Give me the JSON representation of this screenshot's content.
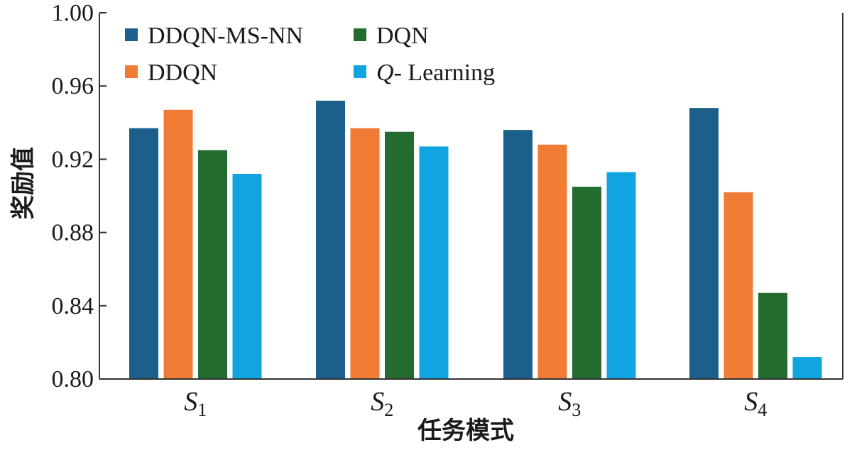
{
  "chart_data": {
    "type": "bar",
    "ylabel": "奖励值",
    "xlabel": "任务模式",
    "ylim": [
      0.8,
      1.0
    ],
    "yticks": [
      "0.80",
      "0.84",
      "0.88",
      "0.92",
      "0.96",
      "1.00"
    ],
    "categories": [
      {
        "letter": "S",
        "sub": "1"
      },
      {
        "letter": "S",
        "sub": "2"
      },
      {
        "letter": "S",
        "sub": "3"
      },
      {
        "letter": "S",
        "sub": "4"
      }
    ],
    "series": [
      {
        "name": "DDQN-MS-NN",
        "color": "#1b5f8a",
        "values": [
          0.937,
          0.952,
          0.936,
          0.948
        ]
      },
      {
        "name": "DDQN",
        "color": "#f07b35",
        "values": [
          0.947,
          0.937,
          0.928,
          0.902
        ]
      },
      {
        "name": "DQN",
        "color": "#236b2e",
        "values": [
          0.925,
          0.935,
          0.905,
          0.847
        ]
      },
      {
        "name": "Learning",
        "name_prefix": "Q",
        "color": "#12a4e0",
        "values": [
          0.912,
          0.927,
          0.913,
          0.812
        ]
      }
    ],
    "legend_position": "top-left",
    "grid": false
  }
}
